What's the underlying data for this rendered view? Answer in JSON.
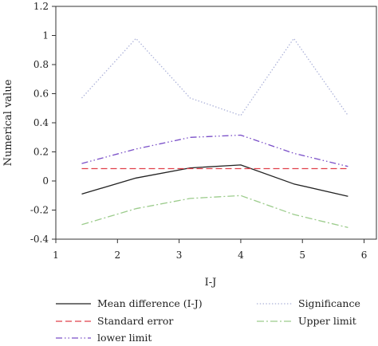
{
  "chart_data": {
    "type": "line",
    "xlabel": "I-J",
    "ylabel": "Numerical value",
    "xlim": [
      1,
      6.2
    ],
    "ylim": [
      -0.4,
      1.2
    ],
    "xticks": [
      1,
      2,
      3,
      4,
      5,
      6
    ],
    "yticks": [
      -0.4,
      -0.2,
      0,
      0.2,
      0.4,
      0.6,
      0.8,
      1,
      1.2
    ],
    "x": [
      1.42,
      2.3,
      3.18,
      4.0,
      4.86,
      5.74
    ],
    "grid": false,
    "legend": "bottom",
    "series": [
      {
        "name": "Mean difference (I-J)",
        "values": [
          -0.09,
          0.02,
          0.09,
          0.11,
          -0.02,
          -0.105
        ],
        "color": "#222222",
        "style": "solid"
      },
      {
        "name": "Significance",
        "values": [
          0.57,
          0.98,
          0.57,
          0.45,
          0.98,
          0.45
        ],
        "color": "#aab0d8",
        "style": "dotted"
      },
      {
        "name": "Standard error",
        "values": [
          0.085,
          0.085,
          0.085,
          0.085,
          0.085,
          0.085
        ],
        "color": "#e0404a",
        "style": "dashed"
      },
      {
        "name": "Upper limit",
        "values": [
          -0.3,
          -0.19,
          -0.12,
          -0.1,
          -0.23,
          -0.32
        ],
        "color": "#9ccc8c",
        "style": "dashdot"
      },
      {
        "name": "lower limit",
        "values": [
          0.12,
          0.22,
          0.3,
          0.315,
          0.19,
          0.1
        ],
        "color": "#7a4fc8",
        "style": "dashdotdot"
      }
    ]
  }
}
